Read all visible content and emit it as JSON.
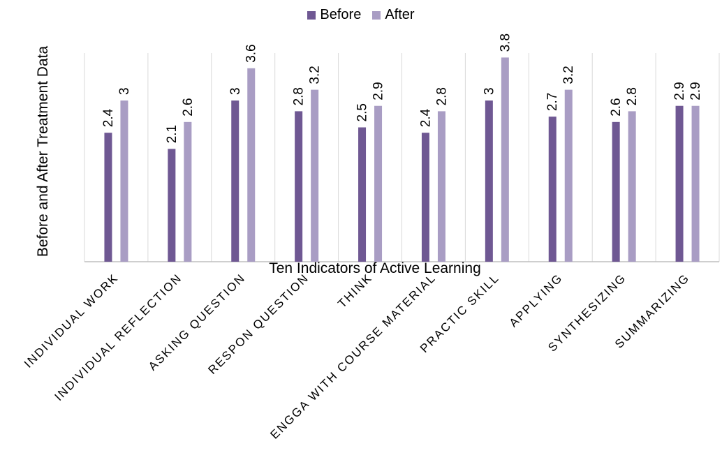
{
  "chart_data": {
    "type": "bar",
    "xlabel": "Ten Indicators of Active Learning",
    "ylabel": "Before and After Treatment Data",
    "ylim": [
      0,
      4
    ],
    "legend_position": "top-center",
    "grid": "vertical",
    "categories": [
      "INDIVIDUAL WORK",
      "INDIVIDUAL REFLECTION",
      "ASKING QUESTION",
      "RESPON QUESTION",
      "THINK",
      "ENGGA WITH COURSE MATERIAL",
      "PRACTIC SKILL",
      "APPLYING",
      "SYNTHESIZING",
      "SUMMARIZING"
    ],
    "series": [
      {
        "name": "Before",
        "color": "#6f5893",
        "values": [
          2.4,
          2.1,
          3,
          2.8,
          2.5,
          2.4,
          3,
          2.7,
          2.6,
          2.9
        ]
      },
      {
        "name": "After",
        "color": "#a99dc4",
        "values": [
          3,
          2.6,
          3.6,
          3.2,
          2.9,
          2.8,
          3.8,
          3.2,
          2.8,
          2.9
        ]
      }
    ]
  }
}
